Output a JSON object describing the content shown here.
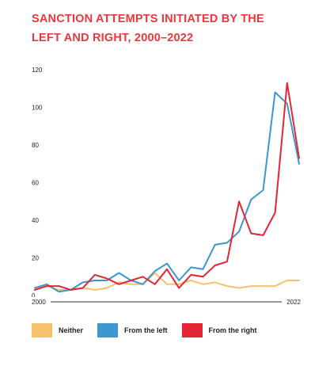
{
  "chart_data": {
    "type": "line",
    "title": "SANCTION ATTEMPTS INITIATED BY THE LEFT AND RIGHT, 2000–2022",
    "xlabel": "",
    "ylabel": "",
    "x": [
      2000,
      2001,
      2002,
      2003,
      2004,
      2005,
      2006,
      2007,
      2008,
      2009,
      2010,
      2011,
      2012,
      2013,
      2014,
      2015,
      2016,
      2017,
      2018,
      2019,
      2020,
      2021,
      2022
    ],
    "x_tick_labels": [
      "2000",
      "2022"
    ],
    "xlim": [
      2000,
      2022
    ],
    "ylim": [
      0,
      120
    ],
    "y_ticks": [
      0,
      20,
      40,
      60,
      80,
      100,
      120
    ],
    "grid": false,
    "legend_position": "bottom-left",
    "series": [
      {
        "name": "Neither",
        "color": "#f5c16c",
        "values": [
          3,
          5,
          3,
          3,
          4,
          3,
          4,
          7,
          6,
          6,
          12,
          6,
          6,
          8,
          6,
          7,
          5,
          4,
          5,
          5,
          5,
          8,
          8
        ]
      },
      {
        "name": "From the left",
        "color": "#3d97cf",
        "values": [
          4,
          6,
          2,
          3,
          7,
          8,
          8,
          12,
          8,
          6,
          13,
          17,
          8,
          15,
          14,
          27,
          28,
          34,
          51,
          56,
          108,
          102,
          70
        ]
      },
      {
        "name": "From the right",
        "color": "#e32636",
        "values": [
          3,
          5,
          5,
          3,
          4,
          11,
          9,
          6,
          8,
          10,
          6,
          14,
          4,
          11,
          10,
          16,
          18,
          50,
          33,
          32,
          44,
          113,
          73
        ]
      }
    ]
  }
}
